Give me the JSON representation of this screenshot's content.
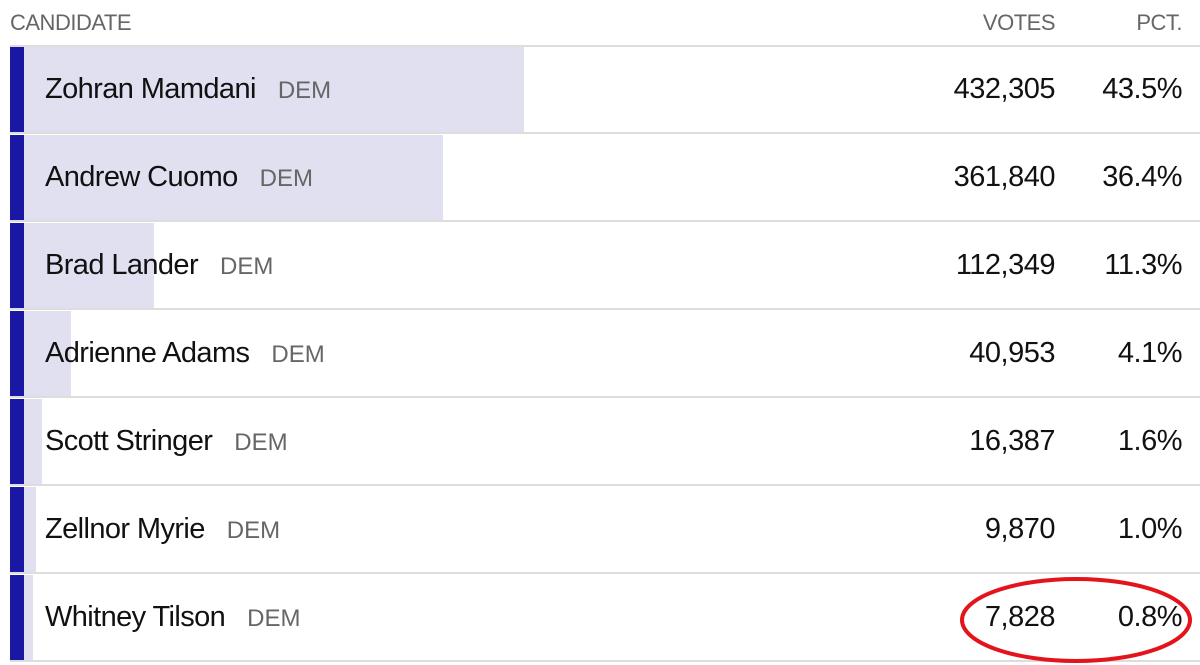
{
  "header": {
    "candidate": "CANDIDATE",
    "votes": "VOTES",
    "pct": "PCT."
  },
  "rows": [
    {
      "name": "Zohran Mamdani",
      "party": "DEM",
      "votes": "432,305",
      "pct": {
        "value": 43.5,
        "label": "43.5%"
      }
    },
    {
      "name": "Andrew Cuomo",
      "party": "DEM",
      "votes": "361,840",
      "pct": {
        "value": 36.4,
        "label": "36.4%"
      }
    },
    {
      "name": "Brad Lander",
      "party": "DEM",
      "votes": "112,349",
      "pct": {
        "value": 11.3,
        "label": "11.3%"
      }
    },
    {
      "name": "Adrienne Adams",
      "party": "DEM",
      "votes": "40,953",
      "pct": {
        "value": 4.1,
        "label": "4.1%"
      }
    },
    {
      "name": "Scott Stringer",
      "party": "DEM",
      "votes": "16,387",
      "pct": {
        "value": 1.6,
        "label": "1.6%"
      }
    },
    {
      "name": "Zellnor Myrie",
      "party": "DEM",
      "votes": "9,870",
      "pct": {
        "value": 1.0,
        "label": "1.0%"
      }
    },
    {
      "name": "Whitney Tilson",
      "party": "DEM",
      "votes": "7,828",
      "pct": {
        "value": 0.8,
        "label": "0.8%"
      }
    }
  ]
}
